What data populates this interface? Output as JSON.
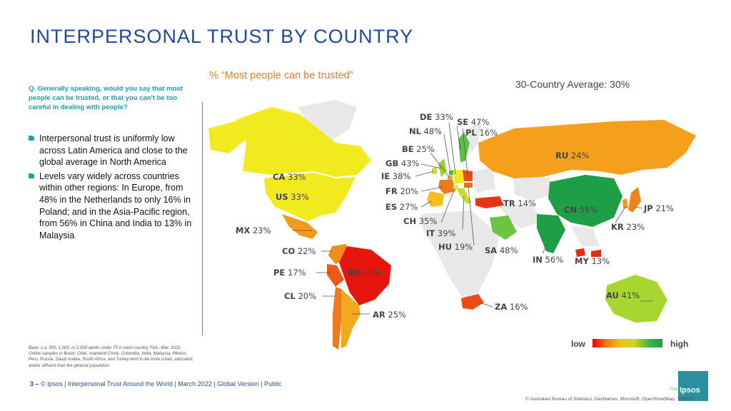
{
  "title": "INTERPERSONAL TRUST BY COUNTRY",
  "question": "Q. Generally speaking, would you say that most people can be trusted, or that you can't be too careful in dealing with people?",
  "bullets": [
    "Interpersonal trust is uniformly low across Latin America and close to the global average in North America",
    "Levels vary widely across countries within other regions: In Europe, from 48% in the Netherlands to only 16% in Poland; and in the Asia-Pacific region, from 56% in China and India to 13% in Malaysia"
  ],
  "base_note": "Base: c.a. 500, 1,000, or 2,000 adults under 75 in each country, Feb.–Mar. 2022. Online samples in Brazil, Chile, mainland China, Colombia, India, Malaysia, Mexico, Peru, Russia, Saudi Arabia, South Africa, and Turkey tend to be more urban, educated, and/or affluent than the general population.",
  "footer": {
    "page": "3",
    "dash": "–",
    "text": "© Ipsos | Interpersonal Trust Around the World | March 2022 | Global Version | Public"
  },
  "subtitle": "% “Most people can be trusted”",
  "average": "30-Country Average: 30%",
  "legend": {
    "low": "low",
    "high": "high"
  },
  "logo_text": "Ipsos",
  "powered": "Pow",
  "copyright": "© Australian Bureau of Statistics, GeoNames, Microsoft, OpenStreetMap, TomTom",
  "colors": {
    "title": "#1f4aa0",
    "accent": "#1a9fb0",
    "subtitle": "#e57f2e"
  },
  "countries": [
    {
      "code": "CA",
      "value": "33%",
      "color": "#f1ea1e"
    },
    {
      "code": "US",
      "value": "33%",
      "color": "#f1ea1e"
    },
    {
      "code": "MX",
      "value": "23%",
      "color": "#f29a1c"
    },
    {
      "code": "CO",
      "value": "22%",
      "color": "#f08d1b"
    },
    {
      "code": "PE",
      "value": "17%",
      "color": "#ec5a18"
    },
    {
      "code": "BR",
      "value": "11%",
      "color": "#e8140e"
    },
    {
      "code": "CL",
      "value": "20%",
      "color": "#ef7a19"
    },
    {
      "code": "AR",
      "value": "25%",
      "color": "#f3a91d"
    },
    {
      "code": "DE",
      "value": "33%",
      "color": "#f1ea1e"
    },
    {
      "code": "SE",
      "value": "47%",
      "color": "#5cc045"
    },
    {
      "code": "NL",
      "value": "48%",
      "color": "#52bd46"
    },
    {
      "code": "PL",
      "value": "16%",
      "color": "#eb4c16"
    },
    {
      "code": "BE",
      "value": "25%",
      "color": "#f3a91d"
    },
    {
      "code": "GB",
      "value": "43%",
      "color": "#9ad235"
    },
    {
      "code": "IE",
      "value": "38%",
      "color": "#cfe02b"
    },
    {
      "code": "FR",
      "value": "20%",
      "color": "#ef7a19"
    },
    {
      "code": "ES",
      "value": "27%",
      "color": "#f5bd1e"
    },
    {
      "code": "CH",
      "value": "35%",
      "color": "#e4e624"
    },
    {
      "code": "IT",
      "value": "39%",
      "color": "#c6dd2c"
    },
    {
      "code": "HU",
      "value": "19%",
      "color": "#ee6f19"
    },
    {
      "code": "SA",
      "value": "48%",
      "color": "#6cc443"
    },
    {
      "code": "TR",
      "value": "14%",
      "color": "#e93514"
    },
    {
      "code": "RU",
      "value": "24%",
      "color": "#f5a01d"
    },
    {
      "code": "CN",
      "value": "56%",
      "color": "#1f9f45"
    },
    {
      "code": "JP",
      "value": "21%",
      "color": "#ef841a"
    },
    {
      "code": "KR",
      "value": "23%",
      "color": "#f29a1c"
    },
    {
      "code": "IN",
      "value": "56%",
      "color": "#1f9f45"
    },
    {
      "code": "MY",
      "value": "13%",
      "color": "#e92a12"
    },
    {
      "code": "ZA",
      "value": "16%",
      "color": "#eb4c16"
    },
    {
      "code": "AU",
      "value": "41%",
      "color": "#a8d631"
    }
  ]
}
